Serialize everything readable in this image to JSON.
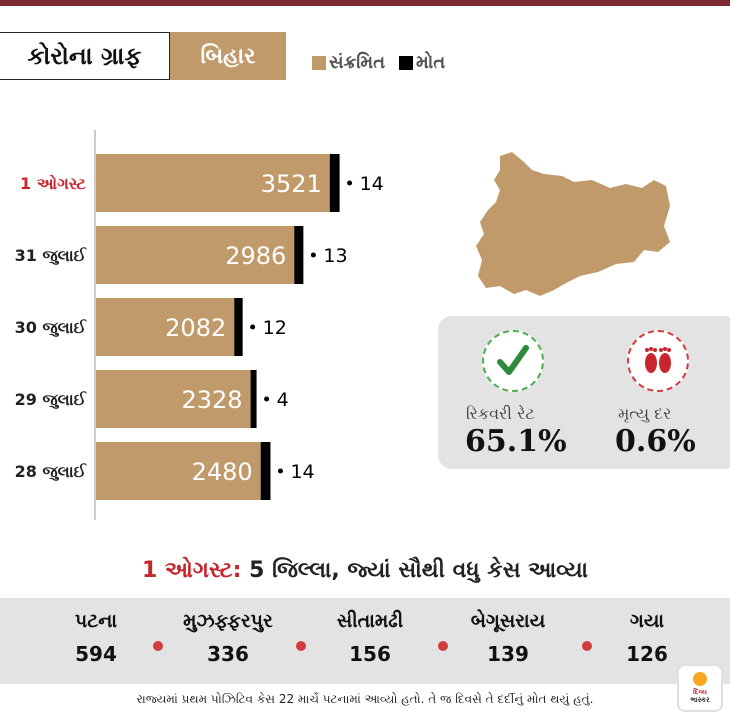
{
  "header": {
    "title": "કોરોના ગ્રાફ",
    "state": "બિહાર",
    "legend": [
      {
        "label": "સંક્રમિત",
        "color": "#c19a6b"
      },
      {
        "label": "મોત",
        "color": "#000000"
      }
    ]
  },
  "chart_data": {
    "type": "bar",
    "orientation": "horizontal",
    "stacked": true,
    "categories": [
      "1 ઓગસ્ટ",
      "31 જુલાઈ",
      "30 જુલાઈ",
      "29 જુલાઈ",
      "28 જુલાઈ"
    ],
    "series": [
      {
        "name": "સંક્રમિત",
        "color": "#c19a6b",
        "values": [
          3521,
          2986,
          2082,
          2328,
          2480
        ]
      },
      {
        "name": "મોત",
        "color": "#000000",
        "values": [
          14,
          13,
          12,
          4,
          14
        ]
      }
    ],
    "highlight_category_color": "#c8262e"
  },
  "map": {
    "icon": "bihar-map-icon",
    "color": "#c19a6b"
  },
  "stats": {
    "recovery": {
      "label": "રિકવરી રેટ",
      "value": "65.1%",
      "icon": "checkmark-icon"
    },
    "mortality": {
      "label": "મૃત્યુ દર",
      "value": "0.6%",
      "icon": "footprints-icon"
    }
  },
  "districts": {
    "title_highlight": "1 ઓગસ્ટ:",
    "title_rest": "5 જિલ્લા, જ્યાં સૌથી વધુ કેસ આવ્યા",
    "items": [
      {
        "name": "પટના",
        "cases": "594"
      },
      {
        "name": "મુઝફ્ફરપુર",
        "cases": "336"
      },
      {
        "name": "સીતામઢી",
        "cases": "156"
      },
      {
        "name": "બેગૂસરાય",
        "cases": "139"
      },
      {
        "name": "ગયા",
        "cases": "126"
      }
    ]
  },
  "footnote": "રાજ્યમાં પ્રથમ પોઝિટિવ કેસ 22 માર્ચે પટનામાં આવ્યો હતો. તે જ દિવસે તે દર્દીનું મોત થયું હતું.",
  "logo": {
    "line1": "દિવ્ય",
    "line2": "ભાસ્કર"
  }
}
